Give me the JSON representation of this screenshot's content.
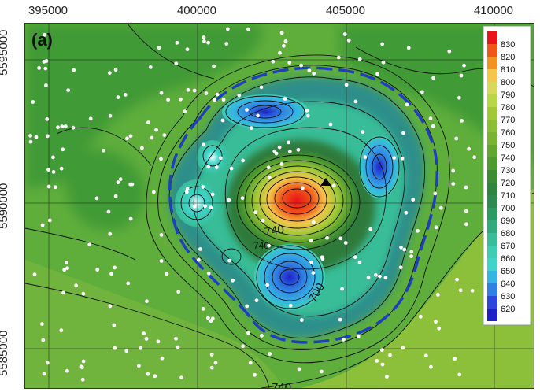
{
  "panel_label": "(a)",
  "x_ticks": [
    "395000",
    "400000",
    "405000",
    "410000"
  ],
  "y_ticks": [
    "5595000",
    "5590000",
    "5585000"
  ],
  "contour_labels": [
    "740",
    "700",
    "740",
    "740"
  ],
  "legend": {
    "ticks": [
      "830",
      "820",
      "810",
      "800",
      "790",
      "780",
      "770",
      "760",
      "750",
      "740",
      "730",
      "720",
      "710",
      "700",
      "690",
      "680",
      "670",
      "660",
      "650",
      "640",
      "630",
      "620"
    ],
    "colors": [
      "#e8141a",
      "#f0561a",
      "#f39222",
      "#f4c64b",
      "#d8d85a",
      "#b8d646",
      "#a1c937",
      "#8cbf35",
      "#78b431",
      "#62a62e",
      "#4e9a2e",
      "#3c8c33",
      "#2f8440",
      "#2e8a4e",
      "#2d9a64",
      "#31ab7d",
      "#37bd98",
      "#3dcdb3",
      "#3fd4c9",
      "#36b5e3",
      "#2f80e3",
      "#2b46dc",
      "#1f21c8"
    ]
  },
  "colors": {
    "background": "#5fae3c",
    "outer_green": "#70b43e",
    "lower_right": "#8dc03a",
    "upper_dark": "#3f9a36",
    "ring": "#2f8f8a",
    "caldera_edge": "#1d3fc0",
    "cyan_low": "#3fd4c9",
    "blue_low": "#2b46dc",
    "dark_ring": "#2e7a3a",
    "high_core": "#e8141a",
    "peak_marker": "#000000",
    "stations": "#ffffff"
  },
  "chart_data": {
    "type": "heatmap",
    "title": "(a)",
    "xlim": [
      393500,
      411500
    ],
    "ylim": [
      5583500,
      5596500
    ],
    "x_ticks": [
      395000,
      400000,
      405000,
      410000
    ],
    "y_ticks": [
      5585000,
      5590000,
      5595000
    ],
    "color_scale": {
      "min": 620,
      "max": 830,
      "step": 10
    },
    "features": [
      {
        "name": "central high",
        "x": 403600,
        "y": 5590250,
        "value": 830
      },
      {
        "name": "northern low",
        "x": 402500,
        "y": 5592800,
        "value": 650
      },
      {
        "name": "eastern low",
        "x": 406300,
        "y": 5591300,
        "value": 640
      },
      {
        "name": "western low",
        "x": 399800,
        "y": 5590100,
        "value": 660
      },
      {
        "name": "southern low",
        "x": 403400,
        "y": 5587900,
        "value": 630
      }
    ],
    "contour_labels": [
      740,
      700,
      740,
      740
    ],
    "grid": true,
    "legend_position": "right"
  }
}
